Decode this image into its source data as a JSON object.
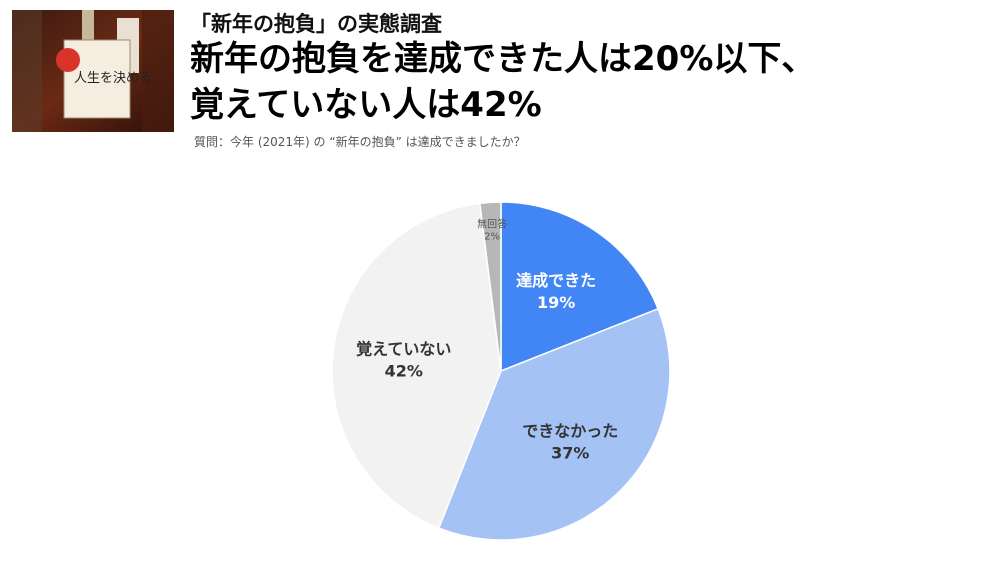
{
  "header": {
    "subtitle": "「新年の抱負」の実態調査",
    "headline_line1": "新年の抱負を達成できた人は20%以下、",
    "headline_line2": "覚えていない人は42%",
    "question": "質問：今年 (2021年) の “新年の抱負” は達成できましたか？"
  },
  "photo": {
    "text": "人生を決める"
  },
  "chart_data": {
    "type": "pie",
    "start_angle_deg": 0,
    "direction": "clockwise",
    "slices": [
      {
        "label": "達成できた",
        "value": 19,
        "display": "19%",
        "color": "#4285f4",
        "label_color": "#ffffff"
      },
      {
        "label": "できなかった",
        "value": 37,
        "display": "37%",
        "color": "#a4c2f4",
        "label_color": "#333333"
      },
      {
        "label": "覚えていない",
        "value": 42,
        "display": "42%",
        "color": "#f2f2f2",
        "label_color": "#333333"
      },
      {
        "label": "無回答",
        "value": 2,
        "display": "2%",
        "color": "#b7b7b7",
        "label_color": "#555555"
      }
    ]
  }
}
